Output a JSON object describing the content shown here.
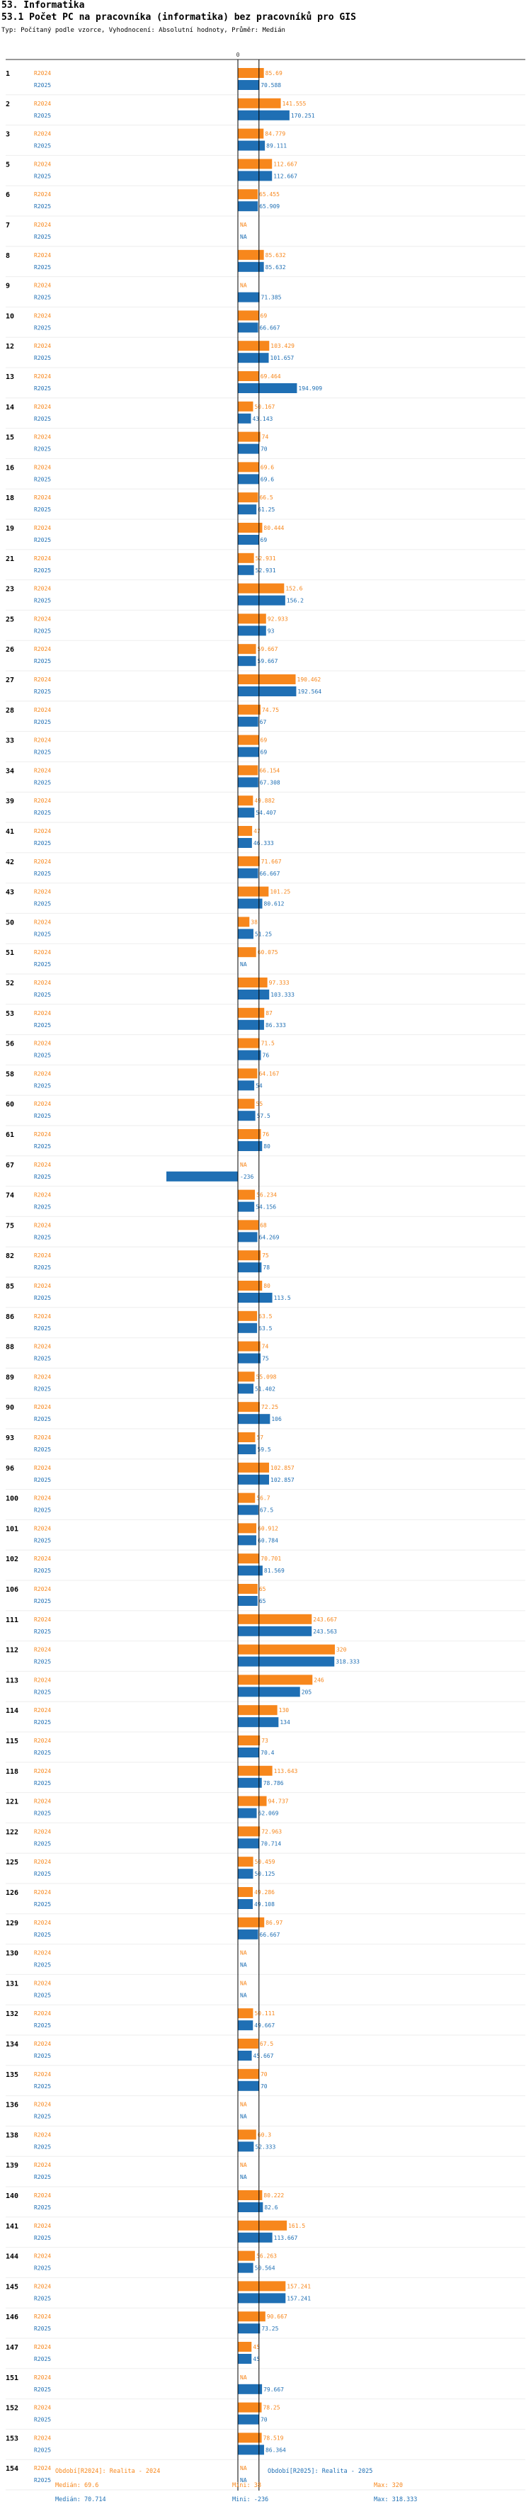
{
  "header": {
    "section": "53. Informatika",
    "title": "53.1 Počet PC na pracovníka (informatika) bez pracovníků pro GIS",
    "subtitle": "Typ: Počítaný podle vzorce, Vyhodnocení: Absolutní hodnoty, Průměr: Medián"
  },
  "colors": {
    "r2024": "#f7871c",
    "r2025": "#1f6fb4"
  },
  "chart_data": {
    "type": "bar",
    "orientation": "horizontal",
    "axis_zero_label": "0",
    "series_names": [
      "R2024",
      "R2025"
    ],
    "x_range": [
      -236,
      320
    ],
    "median_value": 69.6,
    "rows": [
      {
        "id": "1",
        "v2024": 85.69,
        "v2025": 70.588
      },
      {
        "id": "2",
        "v2024": 141.555,
        "v2025": 170.251
      },
      {
        "id": "3",
        "v2024": 84.779,
        "v2025": 89.111
      },
      {
        "id": "5",
        "v2024": 112.667,
        "v2025": 112.667
      },
      {
        "id": "6",
        "v2024": 65.455,
        "v2025": 65.909
      },
      {
        "id": "7",
        "v2024": null,
        "v2025": null
      },
      {
        "id": "8",
        "v2024": 85.632,
        "v2025": 85.632
      },
      {
        "id": "9",
        "v2024": null,
        "v2025": 71.385
      },
      {
        "id": "10",
        "v2024": 69,
        "v2025": 66.667
      },
      {
        "id": "12",
        "v2024": 103.429,
        "v2025": 101.657
      },
      {
        "id": "13",
        "v2024": 69.464,
        "v2025": 194.909
      },
      {
        "id": "14",
        "v2024": 50.167,
        "v2025": 43.143
      },
      {
        "id": "15",
        "v2024": 74,
        "v2025": 70
      },
      {
        "id": "16",
        "v2024": 69.6,
        "v2025": 69.6
      },
      {
        "id": "18",
        "v2024": 66.5,
        "v2025": 61.25
      },
      {
        "id": "19",
        "v2024": 80.444,
        "v2025": 69
      },
      {
        "id": "21",
        "v2024": 52.931,
        "v2025": 52.931
      },
      {
        "id": "23",
        "v2024": 152.6,
        "v2025": 156.2
      },
      {
        "id": "25",
        "v2024": 92.933,
        "v2025": 93
      },
      {
        "id": "26",
        "v2024": 59.667,
        "v2025": 59.667
      },
      {
        "id": "27",
        "v2024": 190.462,
        "v2025": 192.564
      },
      {
        "id": "28",
        "v2024": 74.75,
        "v2025": 67
      },
      {
        "id": "33",
        "v2024": 69,
        "v2025": 69
      },
      {
        "id": "34",
        "v2024": 66.154,
        "v2025": 67.308
      },
      {
        "id": "39",
        "v2024": 49.882,
        "v2025": 54.407
      },
      {
        "id": "41",
        "v2024": 47,
        "v2025": 46.333
      },
      {
        "id": "42",
        "v2024": 71.667,
        "v2025": 66.667
      },
      {
        "id": "43",
        "v2024": 101.25,
        "v2025": 80.612
      },
      {
        "id": "50",
        "v2024": 38,
        "v2025": 51.25
      },
      {
        "id": "51",
        "v2024": 60.075,
        "v2025": null
      },
      {
        "id": "52",
        "v2024": 97.333,
        "v2025": 103.333
      },
      {
        "id": "53",
        "v2024": 87,
        "v2025": 86.333
      },
      {
        "id": "56",
        "v2024": 71.5,
        "v2025": 76
      },
      {
        "id": "58",
        "v2024": 64.167,
        "v2025": 54
      },
      {
        "id": "60",
        "v2024": 55,
        "v2025": 57.5
      },
      {
        "id": "61",
        "v2024": 76,
        "v2025": 80
      },
      {
        "id": "67",
        "v2024": null,
        "v2025": -236
      },
      {
        "id": "74",
        "v2024": 56.234,
        "v2025": 54.156
      },
      {
        "id": "75",
        "v2024": 68,
        "v2025": 64.269
      },
      {
        "id": "82",
        "v2024": 75,
        "v2025": 78
      },
      {
        "id": "85",
        "v2024": 80,
        "v2025": 113.5
      },
      {
        "id": "86",
        "v2024": 63.5,
        "v2025": 63.5
      },
      {
        "id": "88",
        "v2024": 74,
        "v2025": 75
      },
      {
        "id": "89",
        "v2024": 55.098,
        "v2025": 51.402
      },
      {
        "id": "90",
        "v2024": 72.25,
        "v2025": 106
      },
      {
        "id": "93",
        "v2024": 57,
        "v2025": 59.5
      },
      {
        "id": "96",
        "v2024": 102.857,
        "v2025": 102.857
      },
      {
        "id": "100",
        "v2024": 56.7,
        "v2025": 67.5
      },
      {
        "id": "101",
        "v2024": 60.912,
        "v2025": 60.784
      },
      {
        "id": "102",
        "v2024": 70.701,
        "v2025": 81.569
      },
      {
        "id": "106",
        "v2024": 65,
        "v2025": 65
      },
      {
        "id": "111",
        "v2024": 243.667,
        "v2025": 243.563
      },
      {
        "id": "112",
        "v2024": 320,
        "v2025": 318.333
      },
      {
        "id": "113",
        "v2024": 246,
        "v2025": 205
      },
      {
        "id": "114",
        "v2024": 130,
        "v2025": 134
      },
      {
        "id": "115",
        "v2024": 73,
        "v2025": 70.4
      },
      {
        "id": "118",
        "v2024": 113.643,
        "v2025": 78.786
      },
      {
        "id": "121",
        "v2024": 94.737,
        "v2025": 62.069
      },
      {
        "id": "122",
        "v2024": 72.963,
        "v2025": 70.714
      },
      {
        "id": "125",
        "v2024": 50.459,
        "v2025": 50.125
      },
      {
        "id": "126",
        "v2024": 49.286,
        "v2025": 49.108
      },
      {
        "id": "129",
        "v2024": 86.97,
        "v2025": 66.667
      },
      {
        "id": "130",
        "v2024": null,
        "v2025": null
      },
      {
        "id": "131",
        "v2024": null,
        "v2025": null
      },
      {
        "id": "132",
        "v2024": 50.111,
        "v2025": 49.667
      },
      {
        "id": "134",
        "v2024": 67.5,
        "v2025": 45.667
      },
      {
        "id": "135",
        "v2024": 70,
        "v2025": 70
      },
      {
        "id": "136",
        "v2024": null,
        "v2025": null
      },
      {
        "id": "138",
        "v2024": 60.3,
        "v2025": 52.333
      },
      {
        "id": "139",
        "v2024": null,
        "v2025": null
      },
      {
        "id": "140",
        "v2024": 80.222,
        "v2025": 82.6
      },
      {
        "id": "141",
        "v2024": 161.5,
        "v2025": 113.667
      },
      {
        "id": "144",
        "v2024": 56.263,
        "v2025": 50.564
      },
      {
        "id": "145",
        "v2024": 157.241,
        "v2025": 157.241
      },
      {
        "id": "146",
        "v2024": 90.667,
        "v2025": 73.25
      },
      {
        "id": "147",
        "v2024": 45,
        "v2025": 45
      },
      {
        "id": "151",
        "v2024": null,
        "v2025": 79.667
      },
      {
        "id": "152",
        "v2024": 78.25,
        "v2025": 70
      },
      {
        "id": "153",
        "v2024": 78.519,
        "v2025": 86.364
      },
      {
        "id": "154",
        "v2024": null,
        "v2025": null
      }
    ]
  },
  "footer": {
    "col1_line1": "Období[R2024]: Realita - 2024",
    "col1_line2": "Medián: 69.6",
    "col1_line3": "Medián: 70.714",
    "col2_line1": "Období[R2025]: Realita - 2025",
    "col2_line2": "Mini: 38",
    "col2_line3": "Mini: -236",
    "col3_line2": "Max: 320",
    "col3_line3": "Max: 318.333"
  }
}
